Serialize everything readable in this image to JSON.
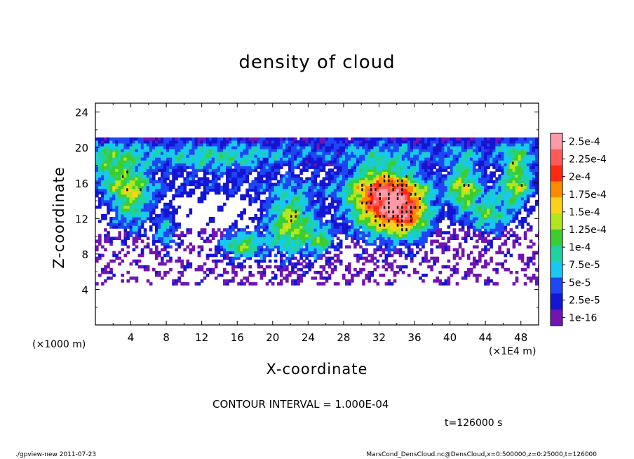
{
  "chart_data": {
    "type": "heatmap",
    "title": "density of cloud",
    "xlabel": "X-coordinate",
    "ylabel": "Z-coordinate",
    "x_unit": "(×1E4 m)",
    "y_unit": "(×1000 m)",
    "xlim": [
      0,
      50
    ],
    "ylim": [
      0,
      25
    ],
    "x_ticks": [
      "4",
      "8",
      "12",
      "16",
      "20",
      "24",
      "28",
      "32",
      "36",
      "40",
      "44",
      "48"
    ],
    "y_ticks": [
      "4",
      "8",
      "12",
      "16",
      "20",
      "24"
    ],
    "cloud_z_range": [
      4.5,
      21.3
    ],
    "colorbar": {
      "labels": [
        "2.5e-4",
        "2.25e-4",
        "2e-4",
        "1.75e-4",
        "1.5e-4",
        "1.25e-4",
        "1e-4",
        "7.5e-5",
        "5e-5",
        "2.5e-5",
        "1e-16"
      ],
      "colors": [
        "#ff9aa6",
        "#ff5a5a",
        "#ff2a10",
        "#ff8c00",
        "#ffd21a",
        "#b2e61e",
        "#3ccd32",
        "#1fd2a0",
        "#19c8f0",
        "#1e46f5",
        "#1414d2",
        "#7014b4"
      ]
    },
    "contour_interval": "CONTOUR INTERVAL = 1.000E-04",
    "time_label": "t=126000 s"
  },
  "footer": {
    "left": "./gpview-new  2011-07-23",
    "right": "MarsCond_DensCloud.nc@DensCloud,x=0:500000,z=0:25000,t=126000"
  }
}
